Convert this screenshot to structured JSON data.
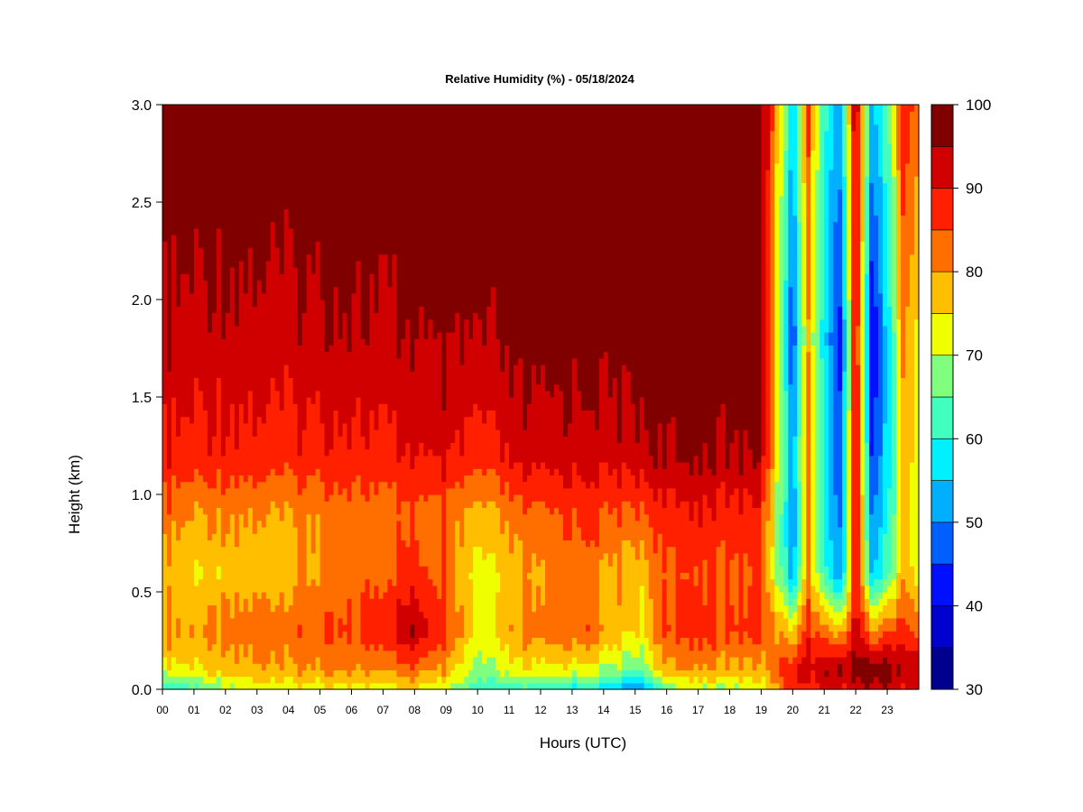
{
  "chart_data": {
    "type": "heatmap",
    "title": "Relative Humidity (%) - 05/18/2024",
    "xlabel": "Hours (UTC)",
    "ylabel": "Height (km)",
    "x_ticks": [
      "00",
      "01",
      "02",
      "03",
      "04",
      "05",
      "06",
      "07",
      "08",
      "09",
      "10",
      "11",
      "12",
      "13",
      "14",
      "15",
      "16",
      "17",
      "18",
      "19",
      "20",
      "21",
      "22",
      "23"
    ],
    "y_ticks": [
      "0.0",
      "0.5",
      "1.0",
      "1.5",
      "2.0",
      "2.5",
      "3.0"
    ],
    "xlim": [
      0,
      24
    ],
    "ylim": [
      0,
      3.0
    ],
    "colorbar": {
      "levels": [
        30,
        35,
        40,
        45,
        50,
        55,
        60,
        65,
        70,
        75,
        80,
        85,
        90,
        95,
        100
      ],
      "tick_labels": [
        "30",
        "40",
        "50",
        "60",
        "70",
        "80",
        "90",
        "100"
      ],
      "colors": [
        "#00008f",
        "#0000cf",
        "#0010ff",
        "#0060ff",
        "#00b0ff",
        "#00f0ff",
        "#40ffbf",
        "#80ff7f",
        "#f0ff00",
        "#ffbf00",
        "#ff6f00",
        "#ff2000",
        "#d00000",
        "#800000"
      ]
    },
    "value_field": {
      "description_source": "approximate RH (%) samples at hour x (UTC) and height z (km)",
      "keyframes": [
        {
          "hour": 0.0,
          "heights": [
            0.0,
            0.1,
            0.3,
            0.6,
            0.9,
            1.2,
            1.8,
            3.0
          ],
          "rh": [
            60,
            74,
            82,
            78,
            84,
            90,
            95,
            100
          ]
        },
        {
          "hour": 1.0,
          "heights": [
            0.0,
            0.1,
            0.3,
            0.6,
            0.9,
            1.2,
            1.8,
            3.0
          ],
          "rh": [
            64,
            74,
            80,
            75,
            80,
            88,
            93,
            100
          ]
        },
        {
          "hour": 3.5,
          "heights": [
            0.0,
            0.1,
            0.3,
            0.6,
            0.9,
            1.2,
            1.8,
            3.0
          ],
          "rh": [
            72,
            80,
            83,
            78,
            80,
            88,
            93,
            100
          ]
        },
        {
          "hour": 6.0,
          "heights": [
            0.0,
            0.1,
            0.3,
            0.6,
            0.9,
            1.2,
            1.8,
            3.0
          ],
          "rh": [
            72,
            80,
            85,
            82,
            82,
            88,
            94,
            100
          ]
        },
        {
          "hour": 8.0,
          "heights": [
            0.0,
            0.1,
            0.3,
            0.6,
            0.9,
            1.2,
            1.8,
            3.0
          ],
          "rh": [
            75,
            83,
            95,
            87,
            84,
            90,
            95,
            100
          ]
        },
        {
          "hour": 9.0,
          "heights": [
            0.0,
            0.1,
            0.3,
            0.6,
            0.9,
            1.2,
            1.8,
            3.0
          ],
          "rh": [
            72,
            80,
            88,
            84,
            84,
            92,
            97,
            100
          ]
        },
        {
          "hour": 10.0,
          "heights": [
            0.0,
            0.1,
            0.3,
            0.6,
            0.9,
            1.2,
            1.8,
            3.0
          ],
          "rh": [
            62,
            68,
            73,
            73,
            78,
            87,
            95,
            100
          ]
        },
        {
          "hour": 11.5,
          "heights": [
            0.0,
            0.1,
            0.3,
            0.6,
            0.9,
            1.2,
            1.8,
            3.0
          ],
          "rh": [
            62,
            75,
            82,
            80,
            84,
            93,
            98,
            100
          ]
        },
        {
          "hour": 13.5,
          "heights": [
            0.0,
            0.1,
            0.3,
            0.6,
            0.9,
            1.2,
            1.8,
            3.0
          ],
          "rh": [
            58,
            72,
            84,
            82,
            86,
            92,
            97,
            100
          ]
        },
        {
          "hour": 15.2,
          "heights": [
            0.0,
            0.1,
            0.3,
            0.6,
            0.9,
            1.2,
            1.8,
            3.0
          ],
          "rh": [
            50,
            65,
            74,
            76,
            84,
            93,
            98,
            100
          ]
        },
        {
          "hour": 16.0,
          "heights": [
            0.0,
            0.1,
            0.3,
            0.6,
            0.9,
            1.2,
            1.8,
            3.0
          ],
          "rh": [
            68,
            80,
            87,
            85,
            89,
            96,
            99,
            100
          ]
        },
        {
          "hour": 19.0,
          "heights": [
            0.0,
            0.1,
            0.3,
            0.6,
            0.9,
            1.2,
            1.8,
            3.0
          ],
          "rh": [
            70,
            78,
            86,
            85,
            88,
            95,
            99,
            100
          ]
        },
        {
          "hour": 20.0,
          "heights": [
            0.0,
            0.1,
            0.3,
            0.6,
            0.9,
            1.2,
            1.8,
            3.0
          ],
          "rh": [
            88,
            90,
            75,
            52,
            50,
            52,
            45,
            56
          ]
        },
        {
          "hour": 20.5,
          "heights": [
            0.0,
            0.1,
            0.3,
            0.6,
            0.9,
            1.2,
            1.8,
            3.0
          ],
          "rh": [
            86,
            92,
            88,
            80,
            80,
            82,
            78,
            85
          ]
        },
        {
          "hour": 21.0,
          "heights": [
            0.0,
            0.1,
            0.3,
            0.6,
            0.9,
            1.2,
            1.8,
            3.0
          ],
          "rh": [
            90,
            94,
            80,
            60,
            58,
            57,
            55,
            60
          ]
        },
        {
          "hour": 21.5,
          "heights": [
            0.0,
            0.1,
            0.3,
            0.6,
            0.9,
            1.2,
            1.8,
            3.0
          ],
          "rh": [
            90,
            95,
            78,
            50,
            48,
            45,
            42,
            52
          ]
        },
        {
          "hour": 22.0,
          "heights": [
            0.0,
            0.1,
            0.3,
            0.6,
            0.9,
            1.2,
            1.8,
            3.0
          ],
          "rh": [
            92,
            97,
            93,
            90,
            92,
            93,
            92,
            96
          ]
        },
        {
          "hour": 22.5,
          "heights": [
            0.0,
            0.1,
            0.3,
            0.6,
            0.9,
            1.2,
            1.8,
            3.0
          ],
          "rh": [
            93,
            98,
            80,
            55,
            50,
            45,
            40,
            55
          ]
        },
        {
          "hour": 23.0,
          "heights": [
            0.0,
            0.1,
            0.3,
            0.6,
            0.9,
            1.2,
            1.8,
            3.0
          ],
          "rh": [
            94,
            98,
            85,
            62,
            58,
            55,
            55,
            62
          ]
        },
        {
          "hour": 23.5,
          "heights": [
            0.0,
            0.1,
            0.3,
            0.6,
            0.9,
            1.2,
            1.8,
            3.0
          ],
          "rh": [
            90,
            96,
            88,
            80,
            78,
            80,
            82,
            90
          ]
        },
        {
          "hour": 24.0,
          "heights": [
            0.0,
            0.1,
            0.3,
            0.6,
            0.9,
            1.2,
            1.8,
            3.0
          ],
          "rh": [
            88,
            94,
            82,
            70,
            68,
            70,
            72,
            80
          ]
        }
      ]
    }
  }
}
